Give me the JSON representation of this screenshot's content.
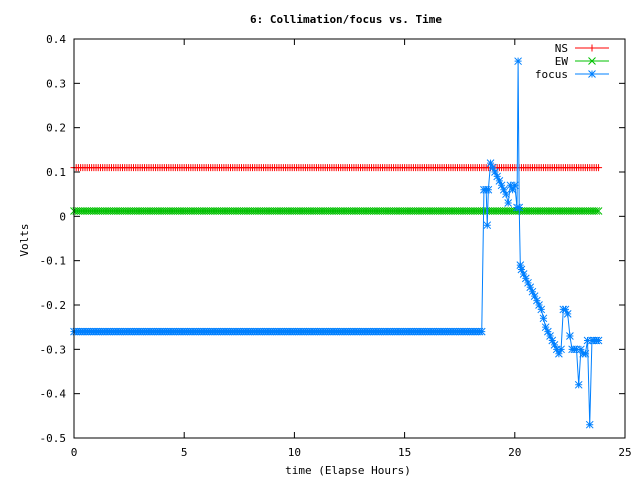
{
  "chart_data": {
    "type": "line",
    "title": "6: Collimation/focus vs. Time",
    "xlabel": "time (Elapse Hours)",
    "ylabel": "Volts",
    "xlim": [
      0,
      25
    ],
    "ylim": [
      -0.5,
      0.4
    ],
    "xticks": [
      "0",
      "5",
      "10",
      "15",
      "20",
      "25"
    ],
    "yticks": [
      "0.4",
      "0.3",
      "0.2",
      "0.1",
      "0",
      "-0.1",
      "-0.2",
      "-0.3",
      "-0.4",
      "-0.5"
    ],
    "grid": false,
    "legend_position": "top-right",
    "series": [
      {
        "name": "NS",
        "color": "#ff0000",
        "marker": "plus",
        "x": [
          0,
          23.8
        ],
        "y": [
          0.11,
          0.11
        ]
      },
      {
        "name": "EW",
        "color": "#00c000",
        "marker": "cross",
        "x": [
          0,
          23.8
        ],
        "y": [
          0.012,
          0.012
        ]
      },
      {
        "name": "focus",
        "color": "#0080ff",
        "marker": "star",
        "x": [
          0,
          18.5,
          18.6,
          18.7,
          18.75,
          18.8,
          18.9,
          19.0,
          19.1,
          19.2,
          19.3,
          19.4,
          19.5,
          19.6,
          19.7,
          19.8,
          19.9,
          20.0,
          20.1,
          20.15,
          20.2,
          20.25,
          20.3,
          20.4,
          20.5,
          20.6,
          20.7,
          20.8,
          20.9,
          21.0,
          21.1,
          21.2,
          21.3,
          21.4,
          21.5,
          21.6,
          21.7,
          21.8,
          21.9,
          22.0,
          22.1,
          22.2,
          22.3,
          22.4,
          22.5,
          22.6,
          22.7,
          22.8,
          22.9,
          23.0,
          23.1,
          23.2,
          23.3,
          23.4,
          23.5,
          23.6,
          23.7,
          23.8
        ],
        "y": [
          -0.26,
          -0.26,
          0.06,
          0.06,
          -0.02,
          0.06,
          0.12,
          0.11,
          0.1,
          0.09,
          0.08,
          0.07,
          0.06,
          0.05,
          0.03,
          0.07,
          0.06,
          0.07,
          0.02,
          0.35,
          0.02,
          -0.11,
          -0.12,
          -0.13,
          -0.14,
          -0.15,
          -0.16,
          -0.17,
          -0.18,
          -0.19,
          -0.2,
          -0.21,
          -0.23,
          -0.25,
          -0.26,
          -0.27,
          -0.28,
          -0.29,
          -0.3,
          -0.31,
          -0.3,
          -0.21,
          -0.21,
          -0.22,
          -0.27,
          -0.3,
          -0.3,
          -0.3,
          -0.38,
          -0.3,
          -0.31,
          -0.31,
          -0.28,
          -0.47,
          -0.28,
          -0.28,
          -0.28,
          -0.28
        ]
      }
    ]
  }
}
